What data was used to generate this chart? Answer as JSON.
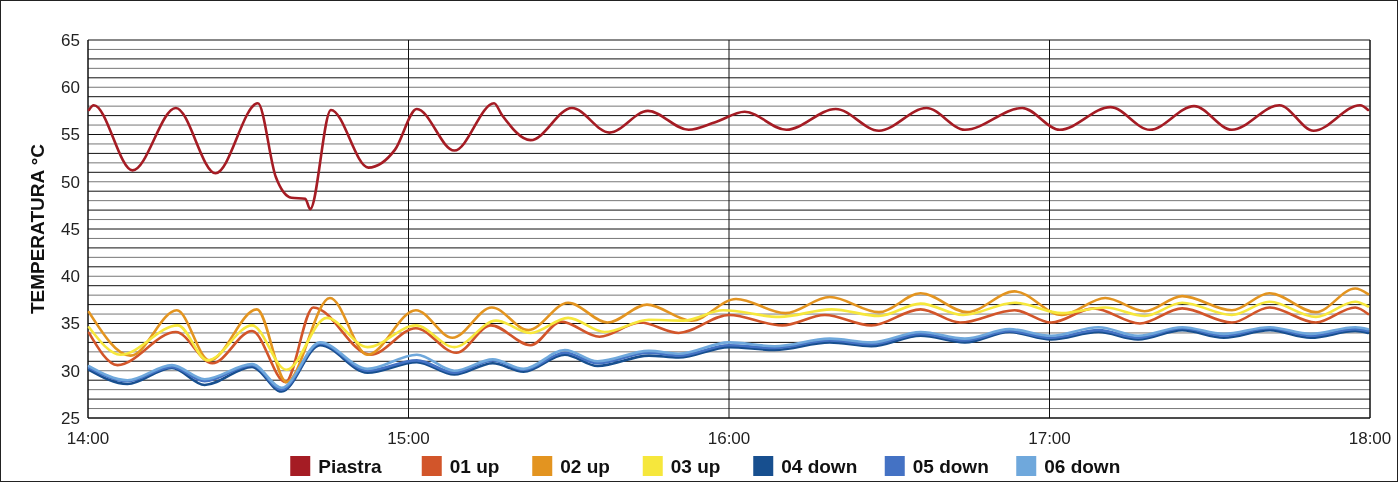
{
  "chart_data": {
    "type": "line",
    "ylabel": "TEMPERATURA °C",
    "xlim": [
      14,
      18
    ],
    "xticks": [
      {
        "value": 14,
        "label": "14:00"
      },
      {
        "value": 15,
        "label": "15:00"
      },
      {
        "value": 16,
        "label": "16:00"
      },
      {
        "value": 17,
        "label": "17:00"
      },
      {
        "value": 18,
        "label": "18:00"
      }
    ],
    "ylim": [
      25,
      65
    ],
    "yticks": [
      25,
      {
        "value": 26,
        "label": null
      },
      {
        "value": 27,
        "label": null
      },
      {
        "value": 28,
        "label": null
      },
      {
        "value": 29,
        "label": null
      },
      30,
      {
        "value": 31,
        "label": null
      },
      {
        "value": 32,
        "label": null
      },
      {
        "value": 33,
        "label": null
      },
      {
        "value": 34,
        "label": null
      },
      35,
      {
        "value": 36,
        "label": null
      },
      {
        "value": 37,
        "label": null
      },
      {
        "value": 38,
        "label": null
      },
      {
        "value": 39,
        "label": null
      },
      40,
      {
        "value": 41,
        "label": null
      },
      {
        "value": 42,
        "label": null
      },
      {
        "value": 43,
        "label": null
      },
      {
        "value": 44,
        "label": null
      },
      45,
      {
        "value": 46,
        "label": null
      },
      {
        "value": 47,
        "label": null
      },
      {
        "value": 48,
        "label": null
      },
      {
        "value": 49,
        "label": null
      },
      50,
      {
        "value": 51,
        "label": null
      },
      {
        "value": 52,
        "label": null
      },
      {
        "value": 53,
        "label": null
      },
      {
        "value": 54,
        "label": null
      },
      55,
      {
        "value": 56,
        "label": null
      },
      {
        "value": 57,
        "label": null
      },
      {
        "value": 58,
        "label": null
      },
      {
        "value": 59,
        "label": null
      },
      60,
      {
        "value": 61,
        "label": null
      },
      {
        "value": 62,
        "label": null
      },
      {
        "value": 63,
        "label": null
      },
      {
        "value": 64,
        "label": null
      },
      65
    ],
    "grid": true,
    "legend": "bottom",
    "marker": "none",
    "line_style": "solid",
    "series": [
      {
        "name": "Piastra",
        "color": "#a51c24",
        "x": [
          14.003,
          14.018,
          14.139,
          14.274,
          14.398,
          14.53,
          14.586,
          14.635,
          14.678,
          14.693,
          14.758,
          14.875,
          14.958,
          15.026,
          15.143,
          15.267,
          15.291,
          15.381,
          15.51,
          15.627,
          15.747,
          15.874,
          15.957,
          16.049,
          16.179,
          16.333,
          16.468,
          16.616,
          16.736,
          16.915,
          17.032,
          17.19,
          17.313,
          17.451,
          17.569,
          17.717,
          17.824,
          17.969,
          17.994
        ],
        "values": [
          57.6,
          58.1,
          51.2,
          57.8,
          50.9,
          58.3,
          50.5,
          48.3,
          48.2,
          47.1,
          57.6,
          51.5,
          53.4,
          57.7,
          53.3,
          58.3,
          57.1,
          54.4,
          57.8,
          55.2,
          57.5,
          55.5,
          56.3,
          57.4,
          55.5,
          57.7,
          55.4,
          57.8,
          55.5,
          57.8,
          55.5,
          57.9,
          55.5,
          58.0,
          55.5,
          58.1,
          55.4,
          58.1,
          57.6
        ]
      },
      {
        "name": "01 up",
        "color": "#d2552a",
        "x": [
          14.003,
          14.092,
          14.274,
          14.388,
          14.512,
          14.616,
          14.703,
          14.881,
          15.023,
          15.149,
          15.257,
          15.381,
          15.476,
          15.596,
          15.723,
          15.843,
          16.0,
          16.166,
          16.299,
          16.444,
          16.598,
          16.721,
          16.891,
          17.005,
          17.137,
          17.282,
          17.414,
          17.569,
          17.686,
          17.831,
          17.954,
          17.994
        ],
        "values": [
          34.0,
          30.6,
          34.1,
          30.8,
          34.2,
          28.8,
          36.7,
          31.7,
          34.5,
          31.9,
          34.8,
          32.7,
          35.2,
          33.6,
          35.1,
          34.0,
          35.9,
          34.8,
          35.9,
          34.8,
          36.5,
          35.1,
          36.4,
          35.1,
          36.6,
          35.0,
          36.6,
          35.1,
          36.7,
          35.1,
          36.7,
          36.0
        ]
      },
      {
        "name": "02 up",
        "color": "#e39420",
        "x": [
          14.003,
          14.133,
          14.277,
          14.379,
          14.527,
          14.619,
          14.755,
          14.872,
          15.023,
          15.137,
          15.26,
          15.374,
          15.498,
          15.621,
          15.744,
          15.883,
          16.022,
          16.176,
          16.314,
          16.468,
          16.598,
          16.743,
          16.891,
          17.039,
          17.174,
          17.297,
          17.414,
          17.569,
          17.686,
          17.831,
          17.954,
          17.994
        ],
        "values": [
          36.2,
          31.6,
          36.4,
          31.1,
          36.5,
          28.8,
          37.7,
          31.7,
          36.4,
          33.5,
          36.7,
          34.3,
          37.2,
          35.1,
          37.0,
          35.3,
          37.6,
          36.1,
          37.8,
          36.2,
          38.2,
          36.2,
          38.4,
          35.9,
          37.7,
          36.3,
          37.9,
          36.4,
          38.2,
          36.2,
          38.7,
          38.1
        ]
      },
      {
        "name": "03 up",
        "color": "#f6e73c",
        "x": [
          14.003,
          14.102,
          14.28,
          14.373,
          14.512,
          14.619,
          14.745,
          14.872,
          15.023,
          15.143,
          15.273,
          15.381,
          15.498,
          15.612,
          15.75,
          15.858,
          15.982,
          16.157,
          16.32,
          16.468,
          16.598,
          16.73,
          16.891,
          17.039,
          17.174,
          17.297,
          17.414,
          17.569,
          17.686,
          17.831,
          17.954,
          17.994
        ],
        "values": [
          34.6,
          31.7,
          34.8,
          31.1,
          34.8,
          30.1,
          35.6,
          32.5,
          34.8,
          32.5,
          35.3,
          34.0,
          35.6,
          34.1,
          35.4,
          35.3,
          36.4,
          35.7,
          36.5,
          35.8,
          37.1,
          35.9,
          37.2,
          36.1,
          36.7,
          35.8,
          37.2,
          35.9,
          37.3,
          35.7,
          37.3,
          36.8
        ]
      },
      {
        "name": "04 down",
        "color": "#174f8f",
        "x": [
          14.003,
          14.123,
          14.262,
          14.364,
          14.512,
          14.604,
          14.724,
          14.872,
          15.026,
          15.143,
          15.263,
          15.359,
          15.488,
          15.59,
          15.75,
          15.843,
          16.0,
          16.142,
          16.314,
          16.444,
          16.598,
          16.736,
          16.875,
          17.005,
          17.153,
          17.276,
          17.414,
          17.544,
          17.686,
          17.815,
          17.954,
          17.994
        ],
        "values": [
          30.1,
          28.6,
          30.3,
          28.5,
          30.4,
          27.8,
          32.7,
          29.8,
          30.9,
          29.6,
          30.8,
          29.9,
          31.7,
          30.5,
          31.6,
          31.4,
          32.5,
          32.2,
          33.0,
          32.6,
          33.7,
          33.0,
          34.1,
          33.3,
          34.1,
          33.3,
          34.3,
          33.5,
          34.3,
          33.5,
          34.2,
          34.0
        ]
      },
      {
        "name": "05 down",
        "color": "#4472c4",
        "x": [
          14.003,
          14.123,
          14.262,
          14.364,
          14.512,
          14.604,
          14.724,
          14.872,
          15.026,
          15.143,
          15.263,
          15.359,
          15.488,
          15.59,
          15.75,
          15.843,
          16.0,
          16.142,
          16.314,
          16.444,
          16.598,
          16.736,
          16.875,
          17.005,
          17.153,
          17.276,
          17.414,
          17.544,
          17.686,
          17.815,
          17.954,
          17.994
        ],
        "values": [
          30.3,
          28.9,
          30.4,
          28.9,
          30.6,
          28.0,
          32.9,
          30.0,
          31.1,
          29.8,
          31.1,
          30.1,
          31.9,
          30.8,
          31.9,
          31.6,
          32.7,
          32.4,
          33.2,
          32.8,
          33.9,
          33.2,
          34.2,
          33.5,
          34.3,
          33.5,
          34.5,
          33.7,
          34.5,
          33.7,
          34.4,
          34.2
        ]
      },
      {
        "name": "06 down",
        "color": "#6fa8dc",
        "x": [
          14.003,
          14.123,
          14.262,
          14.364,
          14.512,
          14.604,
          14.724,
          14.872,
          15.026,
          15.143,
          15.263,
          15.359,
          15.488,
          15.59,
          15.75,
          15.843,
          16.0,
          16.142,
          16.314,
          16.444,
          16.598,
          16.736,
          16.875,
          17.005,
          17.153,
          17.276,
          17.414,
          17.544,
          17.686,
          17.815,
          17.954,
          17.994
        ],
        "values": [
          30.5,
          29.0,
          30.6,
          29.1,
          30.7,
          28.2,
          33.0,
          30.2,
          31.7,
          30.0,
          31.2,
          30.2,
          32.2,
          31.0,
          32.1,
          31.8,
          33.0,
          32.6,
          33.4,
          33.0,
          34.1,
          33.4,
          34.4,
          33.7,
          34.6,
          33.7,
          34.6,
          33.9,
          34.6,
          33.9,
          34.6,
          34.4
        ]
      }
    ]
  }
}
